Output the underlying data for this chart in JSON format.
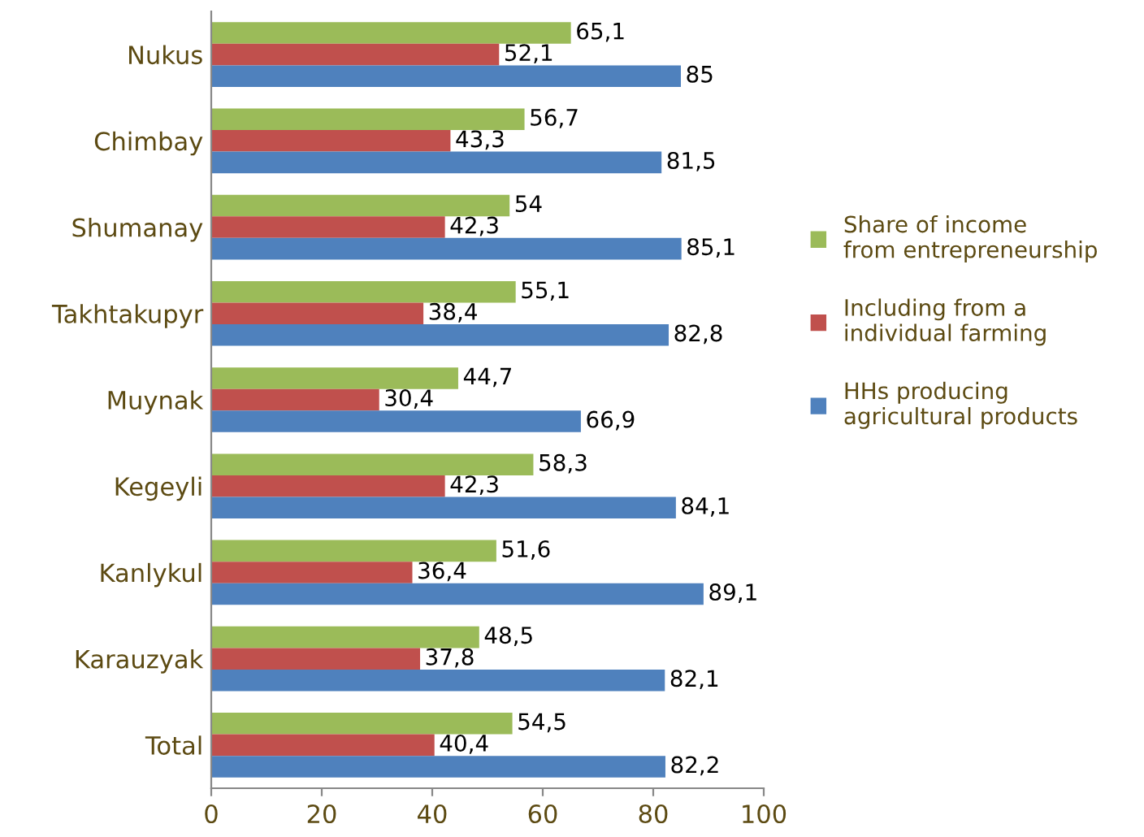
{
  "chart_data": {
    "type": "bar",
    "orientation": "horizontal",
    "categories": [
      "Nukus",
      "Chimbay",
      "Shumanay",
      "Takhtakupyr",
      "Muynak",
      "Kegeyli",
      "Kanlykul",
      "Karauzyak",
      "Total"
    ],
    "series": [
      {
        "name": "Share of income\nfrom entrepreneurship",
        "color": "#9bbb59",
        "values": [
          65.1,
          56.7,
          54,
          55.1,
          44.7,
          58.3,
          51.6,
          48.5,
          54.5
        ],
        "value_labels": [
          "65,1",
          "56,7",
          "54",
          "55,1",
          "44,7",
          "58,3",
          "51,6",
          "48,5",
          "54,5"
        ]
      },
      {
        "name": "Including from a\nindividual farming",
        "color": "#c0504d",
        "values": [
          52.1,
          43.3,
          42.3,
          38.4,
          30.4,
          42.3,
          36.4,
          37.8,
          40.4
        ],
        "value_labels": [
          "52,1",
          "43,3",
          "42,3",
          "38,4",
          "30,4",
          "42,3",
          "36,4",
          "37,8",
          "40,4"
        ]
      },
      {
        "name": "HHs producing\nagricultural products",
        "color": "#4f81bd",
        "values": [
          85,
          81.5,
          85.1,
          82.8,
          66.9,
          84.1,
          89.1,
          82.1,
          82.2
        ],
        "value_labels": [
          "85",
          "81,5",
          "85,1",
          "82,8",
          "66,9",
          "84,1",
          "89,1",
          "82,1",
          "82,2"
        ]
      }
    ],
    "xlim": [
      0,
      100
    ],
    "xticks": [
      0,
      20,
      40,
      60,
      80,
      100
    ],
    "grid": false,
    "legend": "right"
  }
}
